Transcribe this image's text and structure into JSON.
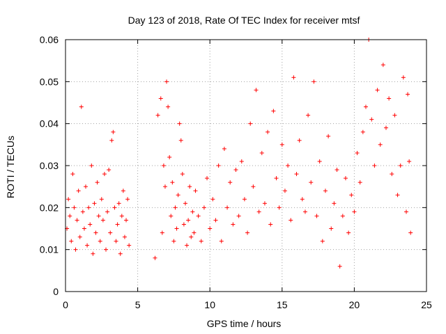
{
  "chart_data": {
    "type": "scatter",
    "title": "Day 123 of 2018, Rate Of TEC Index for receiver mtsf",
    "xlabel": "GPS time / hours",
    "ylabel": "ROTI / TECUs",
    "xlim": [
      0,
      25
    ],
    "ylim": [
      0,
      0.06
    ],
    "grid": true,
    "marker": "+",
    "color": "#ff0000",
    "x_ticks": [
      0,
      5,
      10,
      15,
      20,
      25
    ],
    "x_tick_labels": [
      "0",
      "5",
      "10",
      "15",
      "20",
      "25"
    ],
    "y_ticks": [
      0,
      0.01,
      0.02,
      0.03,
      0.04,
      0.05,
      0.06
    ],
    "y_tick_labels": [
      "0",
      "0.01",
      "0.02",
      "0.03",
      "0.04",
      "0.05",
      "0.06"
    ],
    "series": [
      {
        "name": "ROTI",
        "points": [
          [
            0.1,
            0.015
          ],
          [
            0.2,
            0.022
          ],
          [
            0.3,
            0.018
          ],
          [
            0.4,
            0.012
          ],
          [
            0.5,
            0.028
          ],
          [
            0.6,
            0.02
          ],
          [
            0.7,
            0.01
          ],
          [
            0.8,
            0.017
          ],
          [
            0.9,
            0.024
          ],
          [
            1.0,
            0.013
          ],
          [
            1.1,
            0.044
          ],
          [
            1.2,
            0.019
          ],
          [
            1.3,
            0.015
          ],
          [
            1.4,
            0.025
          ],
          [
            1.5,
            0.011
          ],
          [
            1.6,
            0.02
          ],
          [
            1.7,
            0.016
          ],
          [
            1.8,
            0.03
          ],
          [
            1.9,
            0.009
          ],
          [
            2.0,
            0.021
          ],
          [
            2.1,
            0.014
          ],
          [
            2.2,
            0.026
          ],
          [
            2.3,
            0.018
          ],
          [
            2.4,
            0.012
          ],
          [
            2.5,
            0.022
          ],
          [
            2.6,
            0.017
          ],
          [
            2.7,
            0.028
          ],
          [
            2.8,
            0.01
          ],
          [
            2.9,
            0.019
          ],
          [
            3.0,
            0.029
          ],
          [
            3.1,
            0.014
          ],
          [
            3.2,
            0.036
          ],
          [
            3.3,
            0.038
          ],
          [
            3.4,
            0.02
          ],
          [
            3.5,
            0.012
          ],
          [
            3.6,
            0.016
          ],
          [
            3.7,
            0.021
          ],
          [
            3.8,
            0.009
          ],
          [
            3.9,
            0.018
          ],
          [
            4.0,
            0.024
          ],
          [
            4.1,
            0.013
          ],
          [
            4.2,
            0.017
          ],
          [
            4.3,
            0.022
          ],
          [
            4.4,
            0.011
          ],
          [
            6.2,
            0.008
          ],
          [
            6.4,
            0.042
          ],
          [
            6.6,
            0.046
          ],
          [
            6.7,
            0.014
          ],
          [
            6.8,
            0.03
          ],
          [
            6.9,
            0.025
          ],
          [
            7.0,
            0.05
          ],
          [
            7.1,
            0.044
          ],
          [
            7.2,
            0.032
          ],
          [
            7.3,
            0.018
          ],
          [
            7.4,
            0.026
          ],
          [
            7.5,
            0.012
          ],
          [
            7.6,
            0.02
          ],
          [
            7.7,
            0.015
          ],
          [
            7.8,
            0.023
          ],
          [
            7.9,
            0.04
          ],
          [
            8.0,
            0.036
          ],
          [
            8.1,
            0.028
          ],
          [
            8.2,
            0.016
          ],
          [
            8.3,
            0.021
          ],
          [
            8.4,
            0.011
          ],
          [
            8.5,
            0.017
          ],
          [
            8.6,
            0.025
          ],
          [
            8.7,
            0.013
          ],
          [
            8.8,
            0.019
          ],
          [
            8.9,
            0.014
          ],
          [
            9.0,
            0.024
          ],
          [
            9.2,
            0.018
          ],
          [
            9.4,
            0.012
          ],
          [
            9.6,
            0.02
          ],
          [
            9.8,
            0.027
          ],
          [
            10.0,
            0.015
          ],
          [
            10.2,
            0.022
          ],
          [
            10.4,
            0.017
          ],
          [
            10.6,
            0.03
          ],
          [
            10.8,
            0.012
          ],
          [
            11.0,
            0.034
          ],
          [
            11.2,
            0.02
          ],
          [
            11.4,
            0.026
          ],
          [
            11.6,
            0.016
          ],
          [
            11.8,
            0.029
          ],
          [
            12.0,
            0.018
          ],
          [
            12.2,
            0.031
          ],
          [
            12.4,
            0.022
          ],
          [
            12.6,
            0.014
          ],
          [
            12.8,
            0.04
          ],
          [
            13.0,
            0.025
          ],
          [
            13.2,
            0.048
          ],
          [
            13.4,
            0.019
          ],
          [
            13.6,
            0.033
          ],
          [
            13.8,
            0.021
          ],
          [
            14.0,
            0.038
          ],
          [
            14.2,
            0.016
          ],
          [
            14.4,
            0.043
          ],
          [
            14.6,
            0.027
          ],
          [
            14.8,
            0.02
          ],
          [
            15.0,
            0.035
          ],
          [
            15.2,
            0.024
          ],
          [
            15.4,
            0.03
          ],
          [
            15.6,
            0.017
          ],
          [
            15.8,
            0.051
          ],
          [
            16.0,
            0.028
          ],
          [
            16.2,
            0.036
          ],
          [
            16.4,
            0.022
          ],
          [
            16.6,
            0.019
          ],
          [
            16.8,
            0.042
          ],
          [
            17.0,
            0.026
          ],
          [
            17.2,
            0.05
          ],
          [
            17.4,
            0.018
          ],
          [
            17.6,
            0.031
          ],
          [
            17.8,
            0.012
          ],
          [
            18.0,
            0.024
          ],
          [
            18.2,
            0.037
          ],
          [
            18.4,
            0.015
          ],
          [
            18.6,
            0.021
          ],
          [
            18.8,
            0.029
          ],
          [
            19.0,
            0.006
          ],
          [
            19.2,
            0.018
          ],
          [
            19.4,
            0.027
          ],
          [
            19.6,
            0.014
          ],
          [
            19.8,
            0.023
          ],
          [
            20.0,
            0.019
          ],
          [
            20.2,
            0.033
          ],
          [
            20.4,
            0.026
          ],
          [
            20.6,
            0.038
          ],
          [
            20.8,
            0.044
          ],
          [
            21.0,
            0.06
          ],
          [
            21.2,
            0.041
          ],
          [
            21.4,
            0.03
          ],
          [
            21.6,
            0.048
          ],
          [
            21.8,
            0.035
          ],
          [
            22.0,
            0.054
          ],
          [
            22.2,
            0.039
          ],
          [
            22.4,
            0.046
          ],
          [
            22.6,
            0.028
          ],
          [
            22.8,
            0.042
          ],
          [
            23.0,
            0.023
          ],
          [
            23.2,
            0.03
          ],
          [
            23.4,
            0.051
          ],
          [
            23.6,
            0.019
          ],
          [
            23.7,
            0.047
          ],
          [
            23.8,
            0.031
          ],
          [
            23.9,
            0.014
          ]
        ]
      }
    ]
  }
}
